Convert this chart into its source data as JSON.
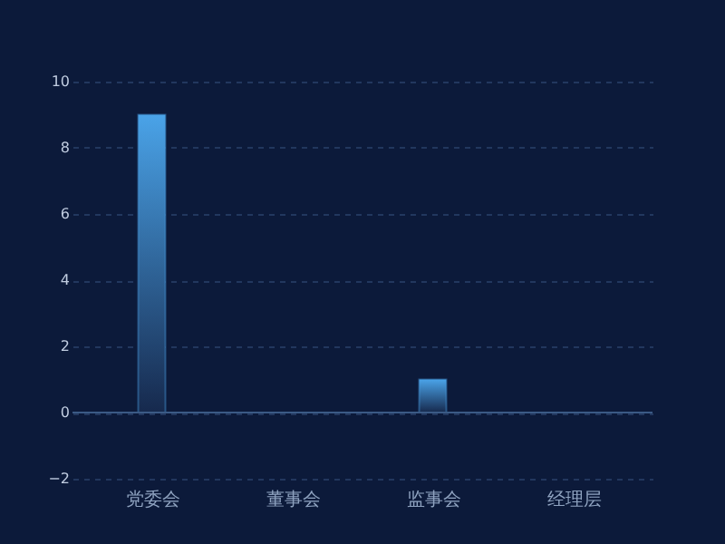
{
  "chart_data": {
    "type": "bar",
    "categories": [
      "党委会",
      "董事会",
      "监事会",
      "经理层"
    ],
    "values": [
      9,
      0,
      1,
      0
    ],
    "color": "#4aa3e8",
    "ylim": [
      -2,
      10
    ],
    "yticks": [
      -2,
      0,
      2,
      4,
      6,
      8,
      10
    ],
    "grid": "y",
    "ref_lines": [
      {
        "axis": "y",
        "value": 0,
        "color": "#3b5a85"
      }
    ]
  }
}
